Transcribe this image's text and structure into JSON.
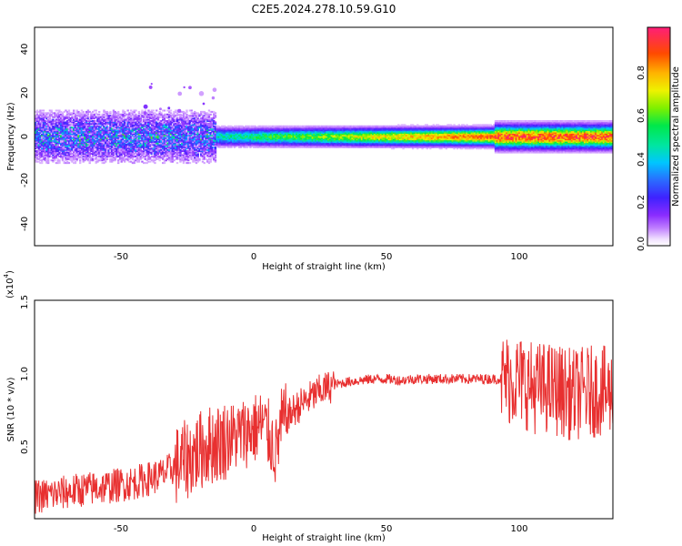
{
  "title": "C2E5.2024.278.10.59.G10",
  "chart_data": [
    {
      "type": "heatmap",
      "xlabel": "Height of straight line (km)",
      "ylabel": "Frequency (Hz)",
      "xlim": [
        -83,
        135
      ],
      "ylim": [
        -50,
        50
      ],
      "xticks": [
        "-50",
        "0",
        "50",
        "100"
      ],
      "yticks": [
        "40",
        "20",
        "0",
        "-20",
        "-40"
      ],
      "colorbar": {
        "label": "Normalized spectral amplitude",
        "range": [
          0,
          1
        ],
        "ticks": [
          "0.0",
          "0.2",
          "0.4",
          "0.6",
          "0.8"
        ]
      },
      "grid": false
    },
    {
      "type": "line",
      "xlabel": "Height of straight line (km)",
      "ylabel": "SNR (10 * v/v)",
      "y_multiplier": "(x10",
      "y_multiplier_exp": "4",
      "xlim": [
        -83,
        135
      ],
      "ylim": [
        0,
        1.5
      ],
      "xticks": [
        "-50",
        "0",
        "50",
        "100"
      ],
      "yticks": [
        "1.5",
        "1.0",
        "0.5"
      ],
      "line_color": "#e83030",
      "grid": false,
      "series": [
        {
          "x": [
            -83,
            -75,
            -65,
            -55,
            -45,
            -35,
            -28,
            -22,
            -18,
            -14,
            -10,
            -5,
            0,
            3,
            6,
            8,
            10,
            15,
            20,
            25,
            30,
            35,
            40,
            45,
            50,
            55,
            60,
            70,
            80,
            90,
            95,
            100,
            105,
            110,
            115,
            120,
            125,
            130,
            135
          ],
          "values": [
            0.15,
            0.17,
            0.2,
            0.22,
            0.25,
            0.3,
            0.38,
            0.45,
            0.5,
            0.52,
            0.55,
            0.58,
            0.62,
            0.65,
            0.55,
            0.45,
            0.65,
            0.75,
            0.82,
            0.88,
            0.92,
            0.94,
            0.95,
            0.96,
            0.96,
            0.95,
            0.96,
            0.96,
            0.96,
            0.96,
            0.96,
            0.95,
            0.9,
            0.9,
            0.88,
            0.85,
            0.87,
            0.88,
            0.85
          ]
        }
      ]
    }
  ]
}
